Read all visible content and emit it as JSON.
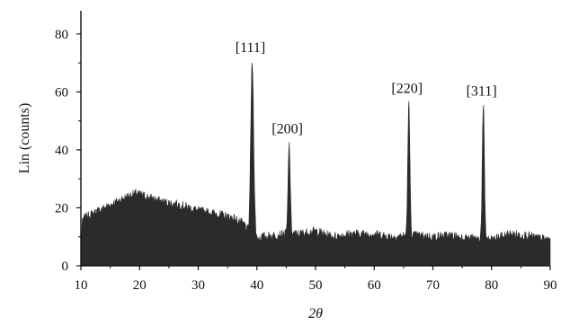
{
  "chart_data": {
    "type": "area",
    "title": "",
    "xlabel": "2θ",
    "ylabel": "Lin (counts)",
    "xlim": [
      10,
      90
    ],
    "ylim": [
      0,
      88
    ],
    "x_ticks": [
      10,
      20,
      30,
      40,
      50,
      60,
      70,
      80,
      90
    ],
    "y_ticks": [
      0,
      20,
      40,
      60,
      80
    ],
    "grid": false,
    "legend": "none",
    "fill_color": "#2b2b2b",
    "background_profile": {
      "x": [
        10,
        10.2,
        12,
        15,
        18,
        19.5,
        21,
        24,
        27,
        30,
        33,
        36,
        38,
        38.6,
        39.4,
        40.2,
        41,
        43,
        45,
        47,
        50,
        53,
        56,
        60,
        63,
        67,
        70,
        73,
        76,
        80,
        83,
        86,
        88,
        90
      ],
      "y": [
        0,
        16,
        18,
        21,
        24,
        25,
        24,
        22,
        21,
        19,
        18,
        16.5,
        14,
        11,
        10,
        9.5,
        10,
        10.5,
        11,
        11,
        12,
        10,
        11,
        11,
        10,
        10.5,
        10,
        10.5,
        9.5,
        9,
        11,
        10.5,
        9.5,
        9
      ]
    },
    "peaks": [
      {
        "label": "[111]",
        "x": 39.2,
        "y": 70,
        "width": 0.55
      },
      {
        "label": "[200]",
        "x": 45.5,
        "y": 42,
        "width": 0.4
      },
      {
        "label": "[220]",
        "x": 65.9,
        "y": 56,
        "width": 0.4
      },
      {
        "label": "[311]",
        "x": 78.6,
        "y": 55,
        "width": 0.4
      }
    ]
  }
}
